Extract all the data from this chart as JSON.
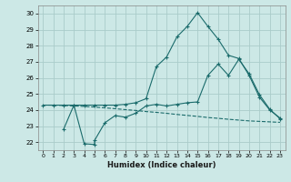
{
  "xlabel": "Humidex (Indice chaleur)",
  "xlim": [
    -0.5,
    23.5
  ],
  "ylim": [
    21.5,
    30.5
  ],
  "yticks": [
    22,
    23,
    24,
    25,
    26,
    27,
    28,
    29,
    30
  ],
  "xticks": [
    0,
    1,
    2,
    3,
    4,
    5,
    6,
    7,
    8,
    9,
    10,
    11,
    12,
    13,
    14,
    15,
    16,
    17,
    18,
    19,
    20,
    21,
    22,
    23
  ],
  "bg_color": "#cce8e6",
  "grid_color": "#aaccca",
  "line_color": "#1a6b6b",
  "line1_x": [
    0,
    1,
    2,
    3,
    4,
    5,
    6,
    7,
    8,
    9,
    10,
    11,
    12,
    13,
    14,
    15,
    16,
    17,
    18,
    19,
    20,
    21,
    22,
    23
  ],
  "line1_y": [
    24.3,
    24.3,
    24.3,
    24.3,
    24.3,
    24.3,
    24.3,
    24.3,
    24.35,
    24.45,
    24.7,
    26.7,
    27.3,
    28.55,
    29.2,
    30.05,
    29.2,
    28.4,
    27.4,
    27.2,
    26.15,
    24.8,
    24.0,
    23.5
  ],
  "line2_x": [
    0,
    1,
    2,
    3,
    4,
    5,
    6,
    7,
    8,
    9,
    10,
    11,
    12,
    13,
    14,
    15,
    16,
    17,
    18,
    19,
    20,
    21,
    22,
    23
  ],
  "line2_y": [
    24.3,
    24.3,
    24.28,
    24.25,
    24.22,
    24.18,
    24.13,
    24.08,
    24.02,
    23.97,
    23.9,
    23.85,
    23.79,
    23.72,
    23.66,
    23.6,
    23.53,
    23.48,
    23.42,
    23.37,
    23.32,
    23.29,
    23.26,
    23.23
  ],
  "line3_x": [
    2,
    3,
    4,
    5,
    5,
    6,
    7,
    8,
    9,
    10,
    11,
    12,
    13,
    14,
    15,
    16,
    17,
    18,
    19,
    20,
    21,
    22,
    23
  ],
  "line3_y": [
    22.8,
    24.3,
    21.9,
    21.85,
    22.1,
    23.2,
    23.65,
    23.55,
    23.8,
    24.25,
    24.35,
    24.25,
    24.35,
    24.45,
    24.5,
    26.15,
    26.85,
    26.15,
    27.15,
    26.25,
    24.95,
    24.05,
    23.45
  ]
}
